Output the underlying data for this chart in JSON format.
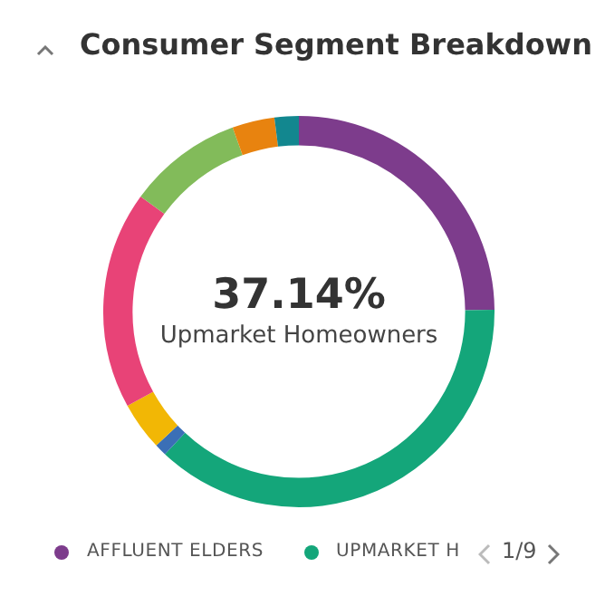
{
  "chart_data": {
    "type": "donut",
    "title": "Consumer Segment Breakdown",
    "categories": [
      "AFFLUENT ELDERS",
      "UPMARKET H",
      null,
      null,
      null,
      null,
      null,
      null
    ],
    "values": [
      24.86,
      37.14,
      1,
      4,
      18,
      9.5,
      3.5,
      2
    ],
    "colors": [
      "#7d3c8c",
      "#14a67a",
      "#3b6fb6",
      "#f2b705",
      "#e84377",
      "#82bb5a",
      "#e8830f",
      "#12878f"
    ],
    "legend": "bottom",
    "annotations": [
      "37.14%",
      "Upmarket Homeowners",
      "1/9"
    ]
  }
}
